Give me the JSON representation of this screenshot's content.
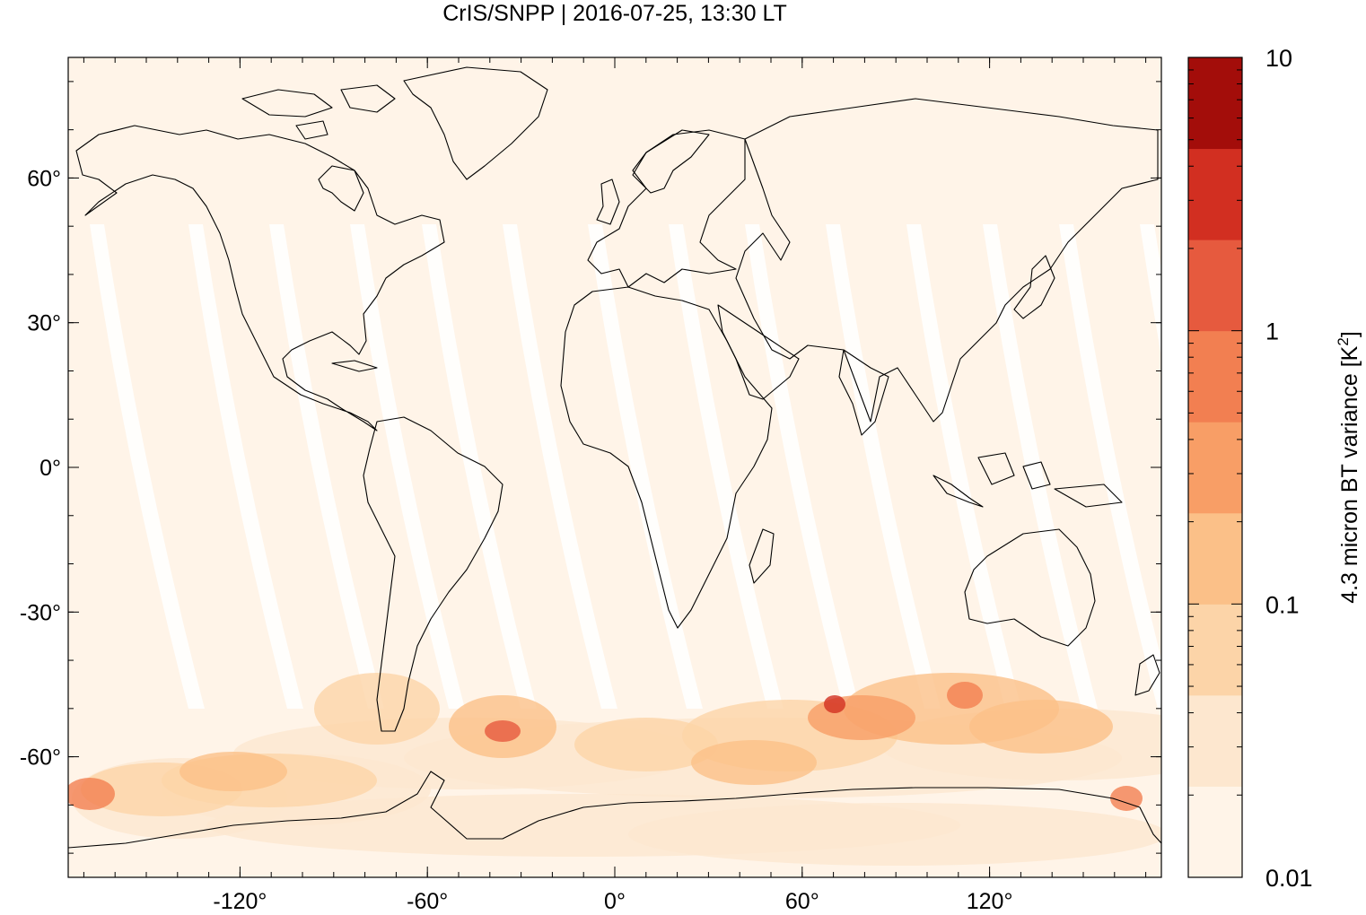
{
  "title": "CrIS/SNPP | 2016-07-25, 13:30 LT",
  "map": {
    "projection": "equirectangular",
    "lon_range": [
      -175,
      175
    ],
    "lat_range": [
      -85,
      85
    ],
    "x_ticks": [
      {
        "value": -120,
        "label": "-120°"
      },
      {
        "value": -60,
        "label": "-60°"
      },
      {
        "value": 0,
        "label": "0°"
      },
      {
        "value": 60,
        "label": "60°"
      },
      {
        "value": 120,
        "label": "120°"
      }
    ],
    "y_ticks": [
      {
        "value": 60,
        "label": "60°"
      },
      {
        "value": 30,
        "label": "30°"
      },
      {
        "value": 0,
        "label": "0°"
      },
      {
        "value": -30,
        "label": "-30°"
      },
      {
        "value": -60,
        "label": "-60°"
      }
    ],
    "field_base_color": "#fff4e8",
    "coastline_color": "#000000"
  },
  "colorbar": {
    "label": "4.3 micron BT variance [K",
    "label_sup": "2",
    "label_end": "]",
    "scale": "log",
    "range": [
      0.01,
      10
    ],
    "ticks": [
      {
        "value": 0.01,
        "label": "0.01"
      },
      {
        "value": 0.1,
        "label": "0.1"
      },
      {
        "value": 1,
        "label": "1"
      },
      {
        "value": 10,
        "label": "10"
      }
    ],
    "bands": [
      "#fff4e8",
      "#fde7cf",
      "#fcd4a8",
      "#fbc088",
      "#f89e66",
      "#f27f51",
      "#e65a3e",
      "#d22f21",
      "#a30d0a"
    ]
  }
}
